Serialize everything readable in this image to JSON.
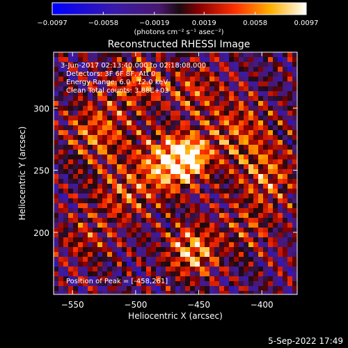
{
  "chart_data": {
    "type": "heatmap",
    "title": "Reconstructed RHESSI Image",
    "xlabel": "Heliocentric X (arcsec)",
    "ylabel": "Heliocentric Y (arcsec)",
    "xlim": [
      -565,
      -372
    ],
    "ylim": [
      150,
      345
    ],
    "x_ticks": [
      -550,
      -500,
      -450,
      -400
    ],
    "y_ticks": [
      200,
      250,
      300
    ],
    "x_tick_labels": [
      "−550",
      "−500",
      "−450",
      "−400"
    ],
    "y_tick_labels": [
      "200",
      "250",
      "300"
    ],
    "colorbar": {
      "range": [
        -0.0097,
        0.0097
      ],
      "ticks": [
        -0.0097,
        -0.0058,
        -0.0019,
        0.0019,
        0.0058,
        0.0097
      ],
      "tick_labels": [
        "−0.0097",
        "−0.0058",
        "−0.0019",
        "0.0019",
        "0.0058",
        "0.0097"
      ],
      "units_label": "(photons cm⁻² s⁻¹ asec⁻²)"
    },
    "annotations": {
      "time_range": "3-Jun-2017 02:13:40.000 to 02:18:08.000",
      "detectors": "Detectors: 3F 6F 8F, Att 0",
      "energy": "Energy Range: 6.0 - 12.0 keV",
      "method": "Clean     Total counts: 3.88E+03",
      "peak": "Position of Peak = [-458,261]"
    },
    "peak": [
      -458,
      261
    ],
    "sources": [
      {
        "x": -474,
        "y": 255,
        "intensity": 1.0,
        "sigma": 16
      },
      {
        "x": -458,
        "y": 261,
        "intensity": 1.0,
        "sigma": 10
      },
      {
        "x": -455,
        "y": 185,
        "intensity": 0.85,
        "sigma": 14
      },
      {
        "x": -420,
        "y": 280,
        "intensity": 0.55,
        "sigma": 20
      },
      {
        "x": -395,
        "y": 245,
        "intensity": 0.55,
        "sigma": 16
      },
      {
        "x": -530,
        "y": 280,
        "intensity": 0.6,
        "sigma": 18
      },
      {
        "x": -500,
        "y": 320,
        "intensity": 0.5,
        "sigma": 16
      },
      {
        "x": -540,
        "y": 195,
        "intensity": 0.35,
        "sigma": 15
      },
      {
        "x": -455,
        "y": 315,
        "intensity": 0.45,
        "sigma": 14
      },
      {
        "x": -510,
        "y": 230,
        "intensity": 0.5,
        "sigma": 16
      },
      {
        "x": -410,
        "y": 205,
        "intensity": 0.35,
        "sigma": 16
      }
    ]
  },
  "footer": {
    "date": "5-Sep-2022 17:49"
  }
}
